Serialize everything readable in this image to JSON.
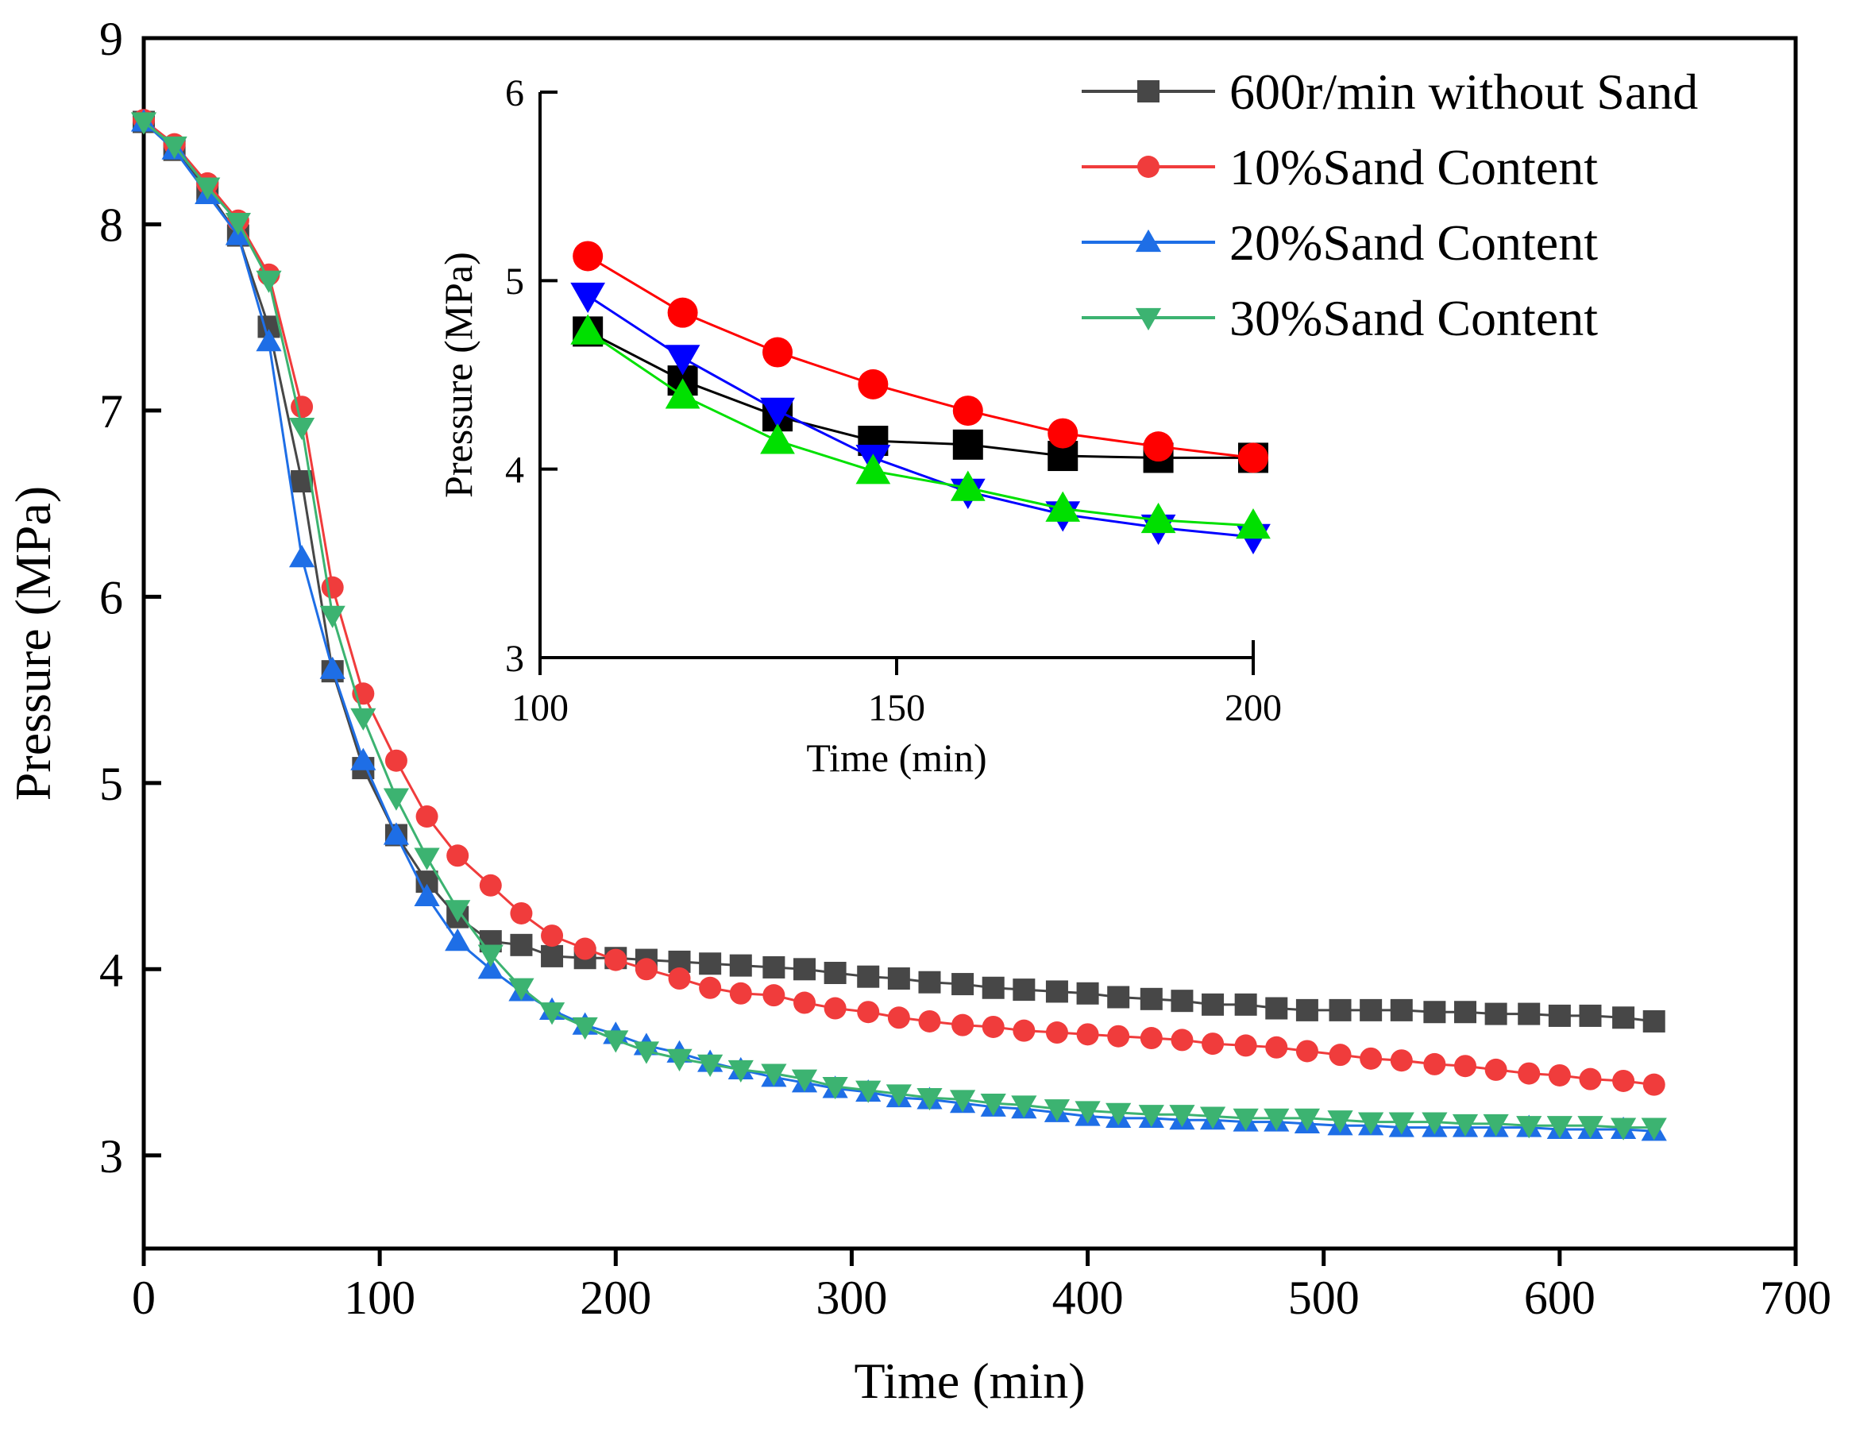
{
  "chart_data": [
    {
      "id": "main",
      "type": "line",
      "title": "",
      "xlabel": "Time (min)",
      "ylabel": "Pressure (MPa)",
      "xlim": [
        0,
        700
      ],
      "ylim": [
        2.5,
        9
      ],
      "xticks": [
        0,
        100,
        200,
        300,
        400,
        500,
        600,
        700
      ],
      "yticks": [
        3,
        4,
        5,
        6,
        7,
        8,
        9
      ],
      "grid": false,
      "legend": "top-right",
      "series": [
        {
          "name": "600r/min without Sand",
          "color": "#474747",
          "marker": "square",
          "x": [
            0,
            13,
            27,
            40,
            53,
            67,
            80,
            93,
            107,
            120,
            133,
            147,
            160,
            173,
            187,
            200,
            213,
            227,
            240,
            253,
            267,
            280,
            293,
            307,
            320,
            333,
            347,
            360,
            373,
            387,
            400,
            413,
            427,
            440,
            453,
            467,
            480,
            493,
            507,
            520,
            533,
            547,
            560,
            573,
            587,
            600,
            613,
            627,
            640
          ],
          "values": [
            8.55,
            8.4,
            8.18,
            7.94,
            7.45,
            6.62,
            5.6,
            5.08,
            4.72,
            4.47,
            4.28,
            4.15,
            4.13,
            4.07,
            4.06,
            4.06,
            4.05,
            4.04,
            4.03,
            4.02,
            4.01,
            4.0,
            3.98,
            3.96,
            3.95,
            3.93,
            3.92,
            3.9,
            3.89,
            3.88,
            3.87,
            3.85,
            3.84,
            3.83,
            3.81,
            3.81,
            3.79,
            3.78,
            3.78,
            3.78,
            3.78,
            3.77,
            3.77,
            3.76,
            3.76,
            3.75,
            3.75,
            3.74,
            3.72
          ]
        },
        {
          "name": "10%Sand Content",
          "color": "#f03c3c",
          "marker": "circle",
          "x": [
            0,
            13,
            27,
            40,
            53,
            67,
            80,
            93,
            107,
            120,
            133,
            147,
            160,
            173,
            187,
            200,
            213,
            227,
            240,
            253,
            267,
            280,
            293,
            307,
            320,
            333,
            347,
            360,
            373,
            387,
            400,
            413,
            427,
            440,
            453,
            467,
            480,
            493,
            507,
            520,
            533,
            547,
            560,
            573,
            587,
            600,
            613,
            627,
            640
          ],
          "values": [
            8.56,
            8.43,
            8.22,
            8.02,
            7.73,
            7.02,
            6.05,
            5.48,
            5.12,
            4.82,
            4.61,
            4.45,
            4.3,
            4.18,
            4.11,
            4.05,
            4.0,
            3.95,
            3.9,
            3.87,
            3.86,
            3.82,
            3.79,
            3.77,
            3.74,
            3.72,
            3.7,
            3.69,
            3.67,
            3.66,
            3.65,
            3.64,
            3.63,
            3.62,
            3.6,
            3.59,
            3.58,
            3.56,
            3.54,
            3.52,
            3.51,
            3.49,
            3.48,
            3.46,
            3.44,
            3.43,
            3.41,
            3.4,
            3.38
          ]
        },
        {
          "name": "20%Sand Content",
          "color": "#1e6ee6",
          "marker": "triangle-up",
          "x": [
            0,
            13,
            27,
            40,
            53,
            67,
            80,
            93,
            107,
            120,
            133,
            147,
            160,
            173,
            187,
            200,
            213,
            227,
            240,
            253,
            267,
            280,
            293,
            307,
            320,
            333,
            347,
            360,
            373,
            387,
            400,
            413,
            427,
            440,
            453,
            467,
            480,
            493,
            507,
            520,
            533,
            547,
            560,
            573,
            587,
            600,
            613,
            627,
            640
          ],
          "values": [
            8.55,
            8.4,
            8.16,
            7.94,
            7.37,
            6.21,
            5.61,
            5.12,
            4.72,
            4.39,
            4.15,
            4.0,
            3.88,
            3.78,
            3.7,
            3.65,
            3.59,
            3.55,
            3.5,
            3.46,
            3.42,
            3.39,
            3.36,
            3.34,
            3.31,
            3.3,
            3.28,
            3.26,
            3.25,
            3.23,
            3.21,
            3.2,
            3.2,
            3.19,
            3.19,
            3.18,
            3.18,
            3.17,
            3.16,
            3.16,
            3.15,
            3.15,
            3.15,
            3.15,
            3.15,
            3.14,
            3.14,
            3.14,
            3.13
          ]
        },
        {
          "name": "30%Sand Content",
          "color": "#3cb371",
          "marker": "triangle-down",
          "x": [
            0,
            13,
            27,
            40,
            53,
            67,
            80,
            93,
            107,
            120,
            133,
            147,
            160,
            173,
            187,
            200,
            213,
            227,
            240,
            253,
            267,
            280,
            293,
            307,
            320,
            333,
            347,
            360,
            373,
            387,
            400,
            413,
            427,
            440,
            453,
            467,
            480,
            493,
            507,
            520,
            533,
            547,
            560,
            573,
            587,
            600,
            613,
            627,
            640
          ],
          "values": [
            8.55,
            8.42,
            8.2,
            8.01,
            7.7,
            6.91,
            5.9,
            5.35,
            4.92,
            4.6,
            4.32,
            4.08,
            3.9,
            3.77,
            3.69,
            3.62,
            3.56,
            3.52,
            3.49,
            3.46,
            3.44,
            3.41,
            3.37,
            3.35,
            3.33,
            3.31,
            3.3,
            3.28,
            3.27,
            3.25,
            3.24,
            3.23,
            3.22,
            3.22,
            3.21,
            3.2,
            3.2,
            3.2,
            3.19,
            3.18,
            3.18,
            3.18,
            3.17,
            3.17,
            3.16,
            3.16,
            3.16,
            3.15,
            3.15
          ]
        }
      ]
    },
    {
      "id": "inset",
      "type": "line",
      "title": "",
      "xlabel": "Time (min)",
      "ylabel": "Pressure (MPa)",
      "xlim": [
        100,
        200
      ],
      "ylim": [
        3,
        6
      ],
      "xticks": [
        100,
        150,
        200
      ],
      "yticks": [
        3,
        4,
        5,
        6
      ],
      "grid": false,
      "legend": "none",
      "series": [
        {
          "name": "600r/min without Sand",
          "color": "#000000",
          "marker": "square",
          "x": [
            106.7,
            120,
            133.3,
            146.7,
            160,
            173.3,
            186.7,
            200
          ],
          "values": [
            4.73,
            4.47,
            4.28,
            4.15,
            4.13,
            4.07,
            4.06,
            4.06
          ]
        },
        {
          "name": "10%Sand Content",
          "color": "#ff0000",
          "marker": "circle",
          "x": [
            106.7,
            120,
            133.3,
            146.7,
            160,
            173.3,
            186.7,
            200
          ],
          "values": [
            5.13,
            4.83,
            4.62,
            4.45,
            4.31,
            4.19,
            4.12,
            4.06
          ]
        },
        {
          "name": "20%Sand Content",
          "color": "#0000ff",
          "marker": "triangle-down",
          "x": [
            106.7,
            120,
            133.3,
            146.7,
            160,
            173.3,
            186.7,
            200
          ],
          "values": [
            4.92,
            4.59,
            4.31,
            4.06,
            3.88,
            3.76,
            3.69,
            3.64
          ]
        },
        {
          "name": "30%Sand Content",
          "color": "#00e000",
          "marker": "triangle-up",
          "x": [
            106.7,
            120,
            133.3,
            146.7,
            160,
            173.3,
            186.7,
            200
          ],
          "values": [
            4.73,
            4.39,
            4.15,
            3.99,
            3.9,
            3.79,
            3.73,
            3.7
          ]
        }
      ]
    }
  ]
}
